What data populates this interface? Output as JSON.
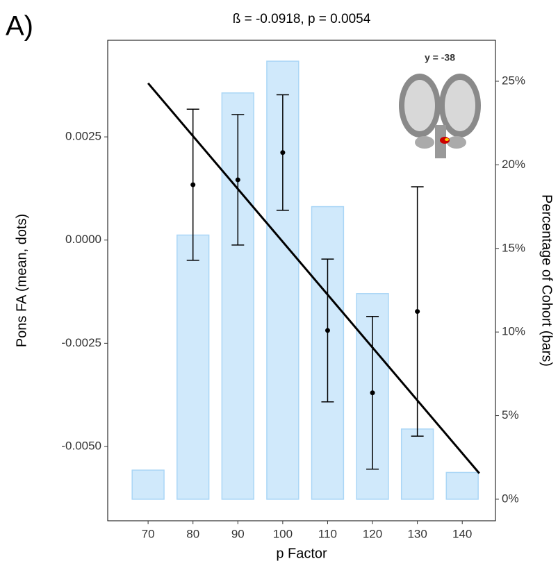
{
  "chart_data": {
    "type": "combo",
    "panel_label": "A)",
    "title": "ß = -0.0918, p = 0.0054",
    "x_label": "p Factor",
    "y_label": "Pons FA (mean, dots)",
    "y2_label": "Percentage of Cohort (bars)",
    "annotation": "y = -38",
    "xlim": [
      61.0,
      147.4
    ],
    "xticks": [
      70,
      80,
      90,
      100,
      110,
      120,
      130,
      140
    ],
    "ylim": [
      -0.0068,
      0.00484
    ],
    "yticks": [
      {
        "value": -0.005,
        "label": "-0.0050"
      },
      {
        "value": -0.0025,
        "label": "-0.0025"
      },
      {
        "value": 0,
        "label": "0.0000"
      },
      {
        "value": 0.0025,
        "label": "0.0025"
      }
    ],
    "y2lim": [
      -1.29,
      27.45
    ],
    "y2ticks": [
      {
        "value": 0,
        "label": "0%"
      },
      {
        "value": 5,
        "label": "5%"
      },
      {
        "value": 10,
        "label": "10%"
      },
      {
        "value": 15,
        "label": "15%"
      },
      {
        "value": 20,
        "label": "20%"
      },
      {
        "value": 25,
        "label": "25%"
      }
    ],
    "series": [
      {
        "type": "bar",
        "axis": "y2",
        "color": "#d0e9fb",
        "x": [
          70,
          80,
          90,
          100,
          110,
          120,
          130,
          140
        ],
        "values": [
          1.74,
          15.8,
          24.3,
          26.2,
          17.5,
          12.3,
          4.2,
          1.6
        ]
      },
      {
        "type": "errorbar",
        "color": "#000000",
        "x": [
          80,
          90,
          100,
          110,
          120,
          130
        ],
        "values": [
          0.00134,
          0.00146,
          0.00212,
          -0.00219,
          -0.0037,
          -0.00173
        ],
        "errors": [
          0.00183,
          0.00158,
          0.0014,
          0.00173,
          0.00185,
          0.00302
        ]
      },
      {
        "type": "line",
        "color": "#000000",
        "x": [
          70,
          143.8
        ],
        "values": [
          0.0038,
          -0.00565
        ]
      }
    ]
  }
}
